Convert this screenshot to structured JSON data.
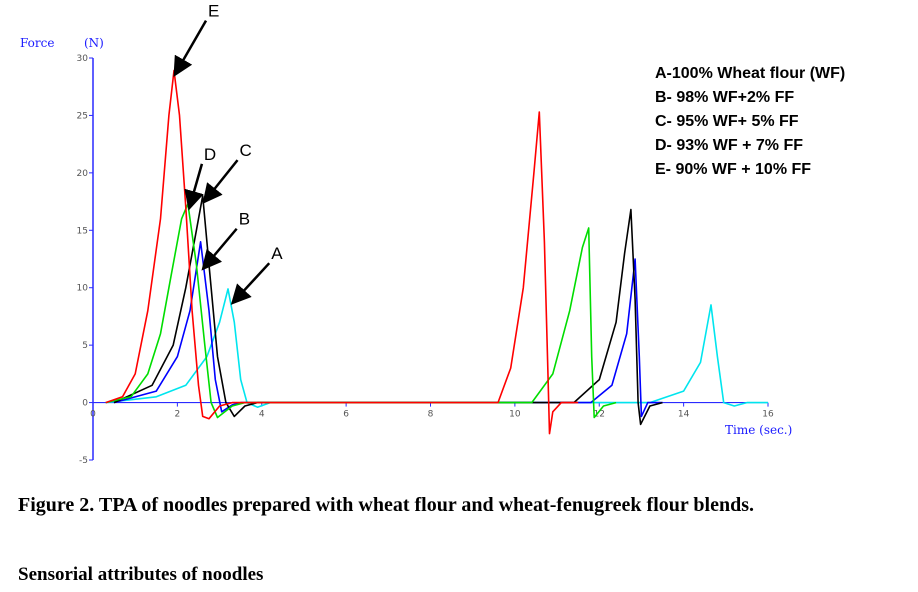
{
  "chart_data": {
    "type": "line",
    "ylabel": "Force",
    "ylabel_unit": "(N)",
    "xlabel": "Time (sec.)",
    "xlim": [
      0,
      16
    ],
    "ylim": [
      -5,
      30
    ],
    "x_ticks": [
      "0",
      "2",
      "4",
      "6",
      "8",
      "10",
      "12",
      "14",
      "16"
    ],
    "y_ticks": [
      "-5",
      "0",
      "5",
      "10",
      "15",
      "20",
      "25",
      "30"
    ],
    "grid": false,
    "legend_position": "top-right",
    "legend": [
      "A-100% Wheat flour (WF)",
      "B- 98% WF+2% FF",
      "C- 95% WF+ 5% FF",
      "D- 93% WF + 7% FF",
      "E- 90% WF + 10% FF"
    ],
    "series": [
      {
        "label": "A",
        "color": "#00e5ee",
        "points": [
          [
            0.3,
            0
          ],
          [
            1.5,
            0.5
          ],
          [
            2.2,
            1.5
          ],
          [
            2.7,
            4
          ],
          [
            3.0,
            7
          ],
          [
            3.2,
            9.9
          ],
          [
            3.35,
            7
          ],
          [
            3.5,
            2
          ],
          [
            3.65,
            0
          ],
          [
            3.9,
            -0.4
          ],
          [
            4.2,
            0
          ],
          [
            13.2,
            0
          ],
          [
            14.0,
            1
          ],
          [
            14.4,
            3.5
          ],
          [
            14.65,
            8.5
          ],
          [
            14.8,
            4
          ],
          [
            14.95,
            0
          ],
          [
            15.2,
            -0.3
          ],
          [
            15.5,
            0
          ],
          [
            16,
            0
          ]
        ]
      },
      {
        "label": "B",
        "color": "#0000ff",
        "points": [
          [
            0.5,
            0
          ],
          [
            1.5,
            1
          ],
          [
            2.0,
            4
          ],
          [
            2.3,
            8
          ],
          [
            2.55,
            14
          ],
          [
            2.75,
            8
          ],
          [
            2.9,
            2
          ],
          [
            3.05,
            -0.8
          ],
          [
            3.3,
            -0.2
          ],
          [
            3.5,
            0
          ],
          [
            11.8,
            0
          ],
          [
            12.3,
            1.5
          ],
          [
            12.65,
            6
          ],
          [
            12.85,
            12.5
          ],
          [
            12.95,
            4
          ],
          [
            13.0,
            -1.2
          ],
          [
            13.15,
            0
          ],
          [
            13.5,
            0
          ]
        ]
      },
      {
        "label": "C",
        "color": "#000000",
        "points": [
          [
            0.5,
            0
          ],
          [
            1.4,
            1.5
          ],
          [
            1.9,
            5
          ],
          [
            2.2,
            10
          ],
          [
            2.45,
            15
          ],
          [
            2.6,
            18
          ],
          [
            2.75,
            12
          ],
          [
            2.95,
            4
          ],
          [
            3.15,
            0
          ],
          [
            3.35,
            -1.2
          ],
          [
            3.6,
            -0.3
          ],
          [
            3.9,
            0
          ],
          [
            11.4,
            0
          ],
          [
            12.0,
            2
          ],
          [
            12.4,
            7
          ],
          [
            12.6,
            13
          ],
          [
            12.75,
            16.8
          ],
          [
            12.85,
            9
          ],
          [
            12.92,
            0
          ],
          [
            12.98,
            -1.9
          ],
          [
            13.2,
            -0.3
          ],
          [
            13.5,
            0
          ]
        ]
      },
      {
        "label": "D",
        "color": "#00dd00",
        "points": [
          [
            0.3,
            0
          ],
          [
            0.9,
            0.5
          ],
          [
            1.3,
            2.5
          ],
          [
            1.6,
            6
          ],
          [
            1.85,
            11
          ],
          [
            2.1,
            16
          ],
          [
            2.25,
            17.3
          ],
          [
            2.45,
            12
          ],
          [
            2.65,
            5
          ],
          [
            2.8,
            0
          ],
          [
            2.95,
            -1.3
          ],
          [
            3.3,
            -0.3
          ],
          [
            3.6,
            0
          ],
          [
            10.4,
            0
          ],
          [
            10.9,
            2.5
          ],
          [
            11.3,
            8
          ],
          [
            11.6,
            13.5
          ],
          [
            11.75,
            15.2
          ],
          [
            11.82,
            4
          ],
          [
            11.88,
            -1.3
          ],
          [
            12.1,
            -0.3
          ],
          [
            12.4,
            0
          ]
        ]
      },
      {
        "label": "E",
        "color": "#ff0000",
        "points": [
          [
            0.3,
            0
          ],
          [
            0.7,
            0.5
          ],
          [
            1.0,
            2.5
          ],
          [
            1.3,
            8
          ],
          [
            1.6,
            16
          ],
          [
            1.8,
            25
          ],
          [
            1.92,
            28.9
          ],
          [
            2.05,
            25
          ],
          [
            2.2,
            17
          ],
          [
            2.35,
            8
          ],
          [
            2.5,
            1.5
          ],
          [
            2.6,
            -1.2
          ],
          [
            2.75,
            -1.4
          ],
          [
            3.0,
            -0.3
          ],
          [
            3.3,
            0
          ],
          [
            9.6,
            0
          ],
          [
            9.9,
            3
          ],
          [
            10.2,
            10
          ],
          [
            10.45,
            20
          ],
          [
            10.58,
            25.3
          ],
          [
            10.7,
            14
          ],
          [
            10.78,
            3
          ],
          [
            10.82,
            -2.7
          ],
          [
            10.9,
            -0.8
          ],
          [
            11.1,
            0
          ],
          [
            11.5,
            0
          ]
        ]
      }
    ],
    "curve_labels": [
      {
        "label": "E",
        "x": 1.92,
        "y": 28.9
      },
      {
        "label": "D",
        "x": 2.25,
        "y": 17.3
      },
      {
        "label": "C",
        "x": 2.62,
        "y": 17.8
      },
      {
        "label": "B",
        "x": 2.6,
        "y": 12.0
      },
      {
        "label": "A",
        "x": 3.3,
        "y": 9.0
      }
    ]
  },
  "captions": {
    "figure": "Figure 2. TPA of noodles prepared with wheat flour and wheat-fenugreek flour blends.",
    "section": "Sensorial attributes of noodles"
  }
}
